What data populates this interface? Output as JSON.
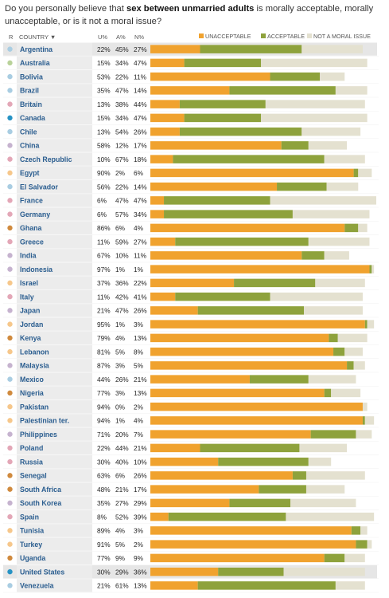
{
  "question": {
    "pre": "Do you personally believe that ",
    "bold": "sex between unmarried adults",
    "post": " is morally acceptable, morally unacceptable, or is it not a moral issue?"
  },
  "header": {
    "region_label": "R",
    "country_label": "COUNTRY ▼",
    "u_label": "U%",
    "a_label": "A%",
    "n_label": "N%"
  },
  "colors": {
    "unacceptable": "#f0a22e",
    "acceptable": "#8ea23c",
    "not_moral": "#e4e1d0",
    "region_asia": "#c6b3cf",
    "region_europe": "#e3a7b7",
    "region_latin": "#a9cde2",
    "region_mideast": "#f6c78b",
    "region_africa": "#d08a3e",
    "region_us": "#2793c4",
    "region_other": "#b9d29a"
  },
  "chart_data": {
    "type": "bar",
    "stacked": true,
    "orientation": "horizontal",
    "legend": [
      "UNACCEPTABLE",
      "ACCEPTABLE",
      "NOT A MORAL ISSUE"
    ],
    "legend_position": "top-right",
    "categories": [
      "Argentina",
      "Australia",
      "Bolivia",
      "Brazil",
      "Britain",
      "Canada",
      "Chile",
      "China",
      "Czech Republic",
      "Egypt",
      "El Salvador",
      "France",
      "Germany",
      "Ghana",
      "Greece",
      "India",
      "Indonesia",
      "Israel",
      "Italy",
      "Japan",
      "Jordan",
      "Kenya",
      "Lebanon",
      "Malaysia",
      "Mexico",
      "Nigeria",
      "Pakistan",
      "Palestinian ter.",
      "Philippines",
      "Poland",
      "Russia",
      "Senegal",
      "South Africa",
      "South Korea",
      "Spain",
      "Tunisia",
      "Turkey",
      "Uganda",
      "United States",
      "Venezuela"
    ],
    "series": [
      {
        "name": "UNACCEPTABLE",
        "values": [
          22,
          15,
          53,
          35,
          13,
          15,
          13,
          58,
          10,
          90,
          56,
          6,
          6,
          86,
          11,
          67,
          97,
          37,
          11,
          21,
          95,
          79,
          81,
          87,
          44,
          77,
          94,
          94,
          71,
          22,
          30,
          63,
          48,
          35,
          8,
          89,
          91,
          77,
          30,
          21
        ]
      },
      {
        "name": "ACCEPTABLE",
        "values": [
          45,
          34,
          22,
          47,
          38,
          34,
          54,
          12,
          67,
          2,
          22,
          47,
          57,
          6,
          59,
          10,
          1,
          36,
          42,
          47,
          1,
          4,
          5,
          3,
          26,
          3,
          0,
          1,
          20,
          44,
          40,
          6,
          21,
          27,
          52,
          4,
          5,
          9,
          29,
          61
        ]
      },
      {
        "name": "NOT A MORAL ISSUE",
        "values": [
          27,
          47,
          11,
          14,
          44,
          47,
          26,
          17,
          18,
          6,
          14,
          47,
          34,
          4,
          27,
          11,
          1,
          22,
          41,
          26,
          3,
          13,
          8,
          5,
          21,
          13,
          2,
          4,
          7,
          21,
          10,
          26,
          17,
          29,
          39,
          3,
          2,
          9,
          36,
          13
        ]
      }
    ],
    "regions": [
      "latin",
      "other",
      "latin",
      "latin",
      "europe",
      "us",
      "latin",
      "asia",
      "europe",
      "mideast",
      "latin",
      "europe",
      "europe",
      "africa",
      "europe",
      "asia",
      "asia",
      "mideast",
      "europe",
      "asia",
      "mideast",
      "africa",
      "mideast",
      "asia",
      "latin",
      "africa",
      "mideast",
      "mideast",
      "asia",
      "europe",
      "europe",
      "africa",
      "africa",
      "asia",
      "europe",
      "mideast",
      "mideast",
      "africa",
      "us",
      "latin"
    ],
    "highlighted": [
      "Argentina",
      "United States"
    ],
    "xlim": [
      0,
      100
    ]
  }
}
